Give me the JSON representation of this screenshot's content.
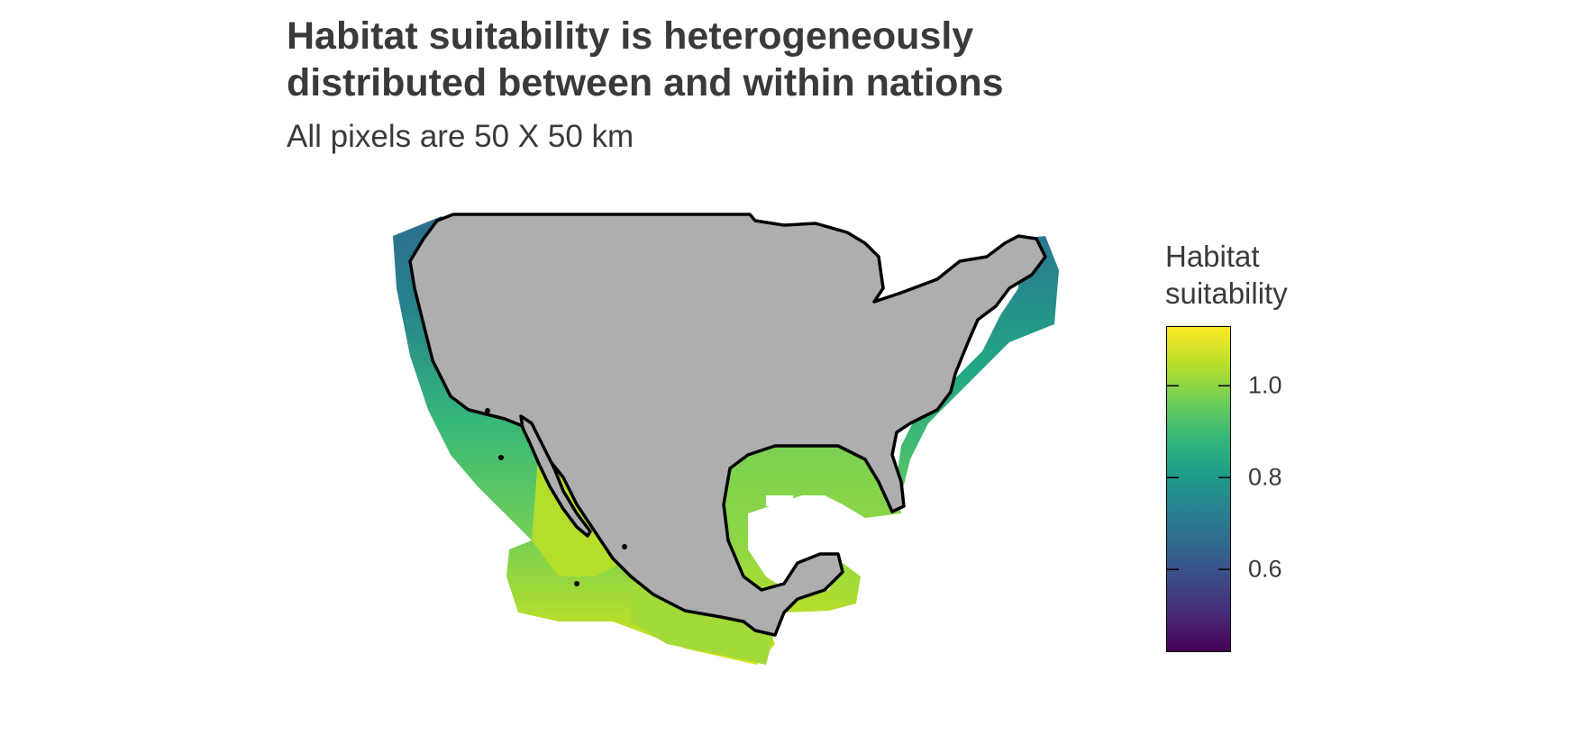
{
  "title_lines": [
    "Habitat suitability is heterogeneously",
    "distributed between and within nations"
  ],
  "subtitle": "All pixels are 50 X 50 km",
  "legend": {
    "title_lines": [
      "Habitat",
      "suitability"
    ],
    "scale": "viridis",
    "range": [
      0.42,
      1.13
    ],
    "ticks": [
      {
        "value": 1.0,
        "label": "1.0"
      },
      {
        "value": 0.8,
        "label": "0.8"
      },
      {
        "value": 0.6,
        "label": "0.6"
      }
    ]
  },
  "colors": {
    "land": "#aeaeae",
    "coastline": "#000000",
    "text": "#3a3a3a"
  }
}
